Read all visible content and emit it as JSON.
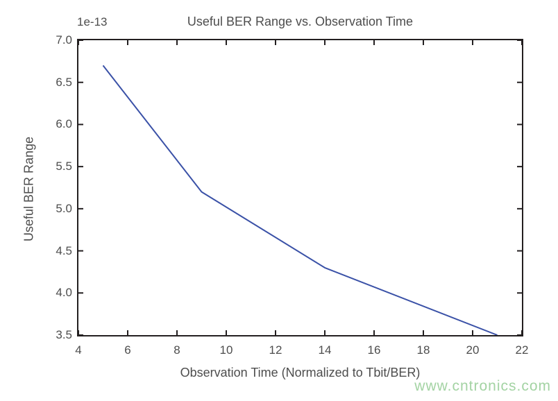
{
  "chart_data": {
    "type": "line",
    "title": "Useful BER Range vs. Observation Time",
    "xlabel": "Observation Time (Normalized to Tbit/BER)",
    "ylabel": "Useful BER Range",
    "y_offset_text": "1e-13",
    "x": [
      5,
      9,
      14,
      21
    ],
    "y": [
      6.7,
      5.2,
      4.3,
      3.5
    ],
    "xlim": [
      4,
      22
    ],
    "ylim": [
      3.5,
      7.0
    ],
    "x_ticks": [
      4,
      6,
      8,
      10,
      12,
      14,
      16,
      18,
      20,
      22
    ],
    "y_ticks": [
      7.0,
      6.5,
      6.0,
      5.5,
      5.0,
      4.5,
      4.0,
      3.5
    ],
    "grid": false,
    "legend_position": "none",
    "tick_direction": "in",
    "line_color": "#3a51a7",
    "axis_color": "#231f20",
    "text_color": "#4d4d4d"
  },
  "watermark": {
    "text": "www.cntronics.com",
    "color": "#a3d3a3"
  }
}
